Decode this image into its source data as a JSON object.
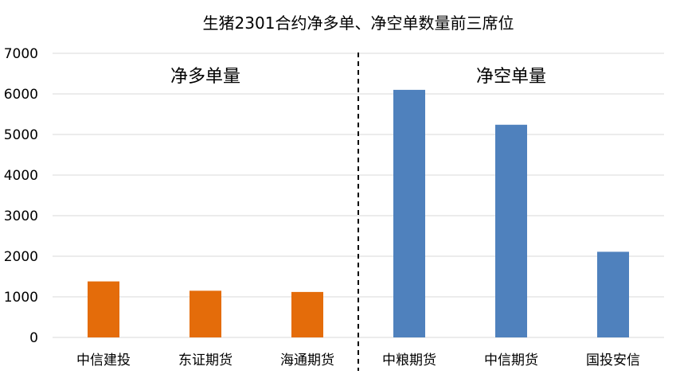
{
  "chart_data": {
    "type": "bar",
    "title": "生猪2301合约净多单、净空单数量前三席位",
    "xlabel": "",
    "ylabel": "",
    "ylim": [
      0,
      7000
    ],
    "yticks": [
      0,
      1000,
      2000,
      3000,
      4000,
      5000,
      6000,
      7000
    ],
    "grid": true,
    "categories": [
      "中信建投",
      "东证期货",
      "海通期货",
      "中粮期货",
      "中信期货",
      "国投安信"
    ],
    "values": [
      1380,
      1150,
      1120,
      6100,
      5240,
      2110
    ],
    "bar_colors": [
      "#E46C0A",
      "#E46C0A",
      "#E46C0A",
      "#4F81BD",
      "#4F81BD",
      "#4F81BD"
    ],
    "groups": [
      {
        "label": "净多单量",
        "categories": [
          "中信建投",
          "东证期货",
          "海通期货"
        ],
        "color": "#E46C0A"
      },
      {
        "label": "净空单量",
        "categories": [
          "中粮期货",
          "中信期货",
          "国投安信"
        ],
        "color": "#4F81BD"
      }
    ],
    "divider": "dashed line between 海通期货 and 中粮期货"
  }
}
